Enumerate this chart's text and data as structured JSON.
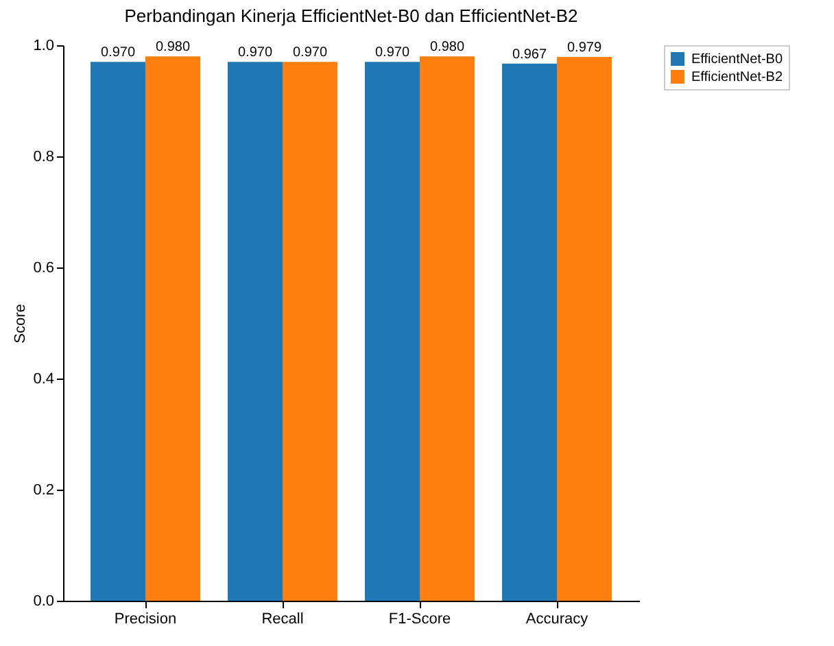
{
  "chart_data": {
    "type": "bar",
    "title": "Perbandingan Kinerja EfficientNet-B0 dan EfficientNet-B2",
    "ylabel": "Score",
    "categories": [
      "Precision",
      "Recall",
      "F1-Score",
      "Accuracy"
    ],
    "series": [
      {
        "name": "EfficientNet-B0",
        "color": "#1f77b4",
        "values": [
          0.97,
          0.97,
          0.97,
          0.967
        ],
        "value_labels": [
          "0.970",
          "0.970",
          "0.970",
          "0.967"
        ]
      },
      {
        "name": "EfficientNet-B2",
        "color": "#ff7f0e",
        "values": [
          0.98,
          0.97,
          0.98,
          0.979
        ],
        "value_labels": [
          "0.980",
          "0.970",
          "0.980",
          "0.979"
        ]
      }
    ],
    "ylim": [
      0,
      1
    ],
    "yticks": [
      {
        "value": 0,
        "label": "0.0"
      },
      {
        "value": 0.2,
        "label": "0.2"
      },
      {
        "value": 0.4,
        "label": "0.4"
      },
      {
        "value": 0.6,
        "label": "0.6"
      },
      {
        "value": 0.8,
        "label": "0.8"
      },
      {
        "value": 1,
        "label": "1.0"
      }
    ],
    "grid": false,
    "legend": "top right"
  }
}
